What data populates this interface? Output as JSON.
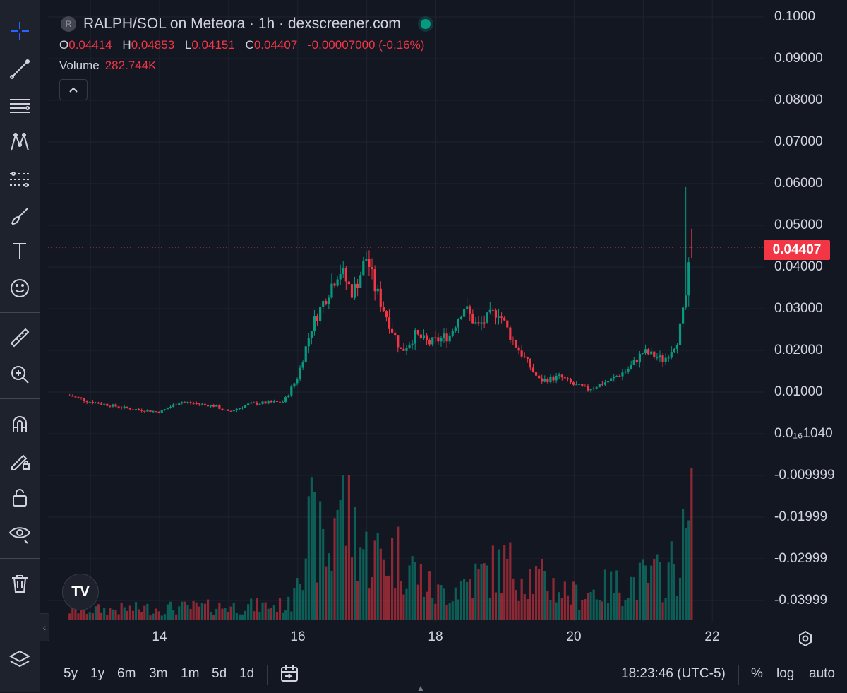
{
  "legend": {
    "symbol_initial": "R",
    "title": "RALPH/SOL on Meteora · 1h · dexscreener.com",
    "ohlc": {
      "o_label": "O",
      "o_value": "0.04414",
      "h_label": "H",
      "h_value": "0.04853",
      "l_label": "L",
      "l_value": "0.04151",
      "c_label": "C",
      "c_value": "0.04407",
      "change": "-0.00007000 (-0.16%)"
    },
    "volume_label": "Volume",
    "volume_value": "282.744K"
  },
  "price_axis": {
    "ticks": [
      "0.1000",
      "0.09000",
      "0.08000",
      "0.07000",
      "0.06000",
      "0.05000",
      "0.04000",
      "0.03000",
      "0.02000",
      "0.01000",
      "0.0₁₆1040",
      "-0.009999",
      "-0.01999",
      "-0.02999",
      "-0.03999"
    ],
    "last_price": "0.04407"
  },
  "time_axis": {
    "labels": [
      "14",
      "16",
      "18",
      "20",
      "22"
    ]
  },
  "bottom_bar": {
    "ranges": [
      "5y",
      "1y",
      "6m",
      "3m",
      "1m",
      "5d",
      "1d"
    ],
    "clock": "18:23:46 (UTC-5)",
    "percent": "%",
    "log": "log",
    "auto": "auto"
  },
  "toolbar_icons": [
    "crosshair-icon",
    "trend-line-icon",
    "fib-retracement-icon",
    "pattern-icon",
    "prediction-icon",
    "brush-icon",
    "text-icon",
    "emoji-icon",
    "ruler-icon",
    "zoom-in-icon",
    "magnet-icon",
    "lock-drawing-icon",
    "lock-icon",
    "eye-icon",
    "trash-icon",
    "layers-icon"
  ],
  "colors": {
    "up": "#089981",
    "down": "#f23645",
    "accent": "#2962ff",
    "background": "#131722"
  },
  "chart_data": {
    "type": "candlestick",
    "series_name": "RALPH/SOL",
    "interval": "1h",
    "x_axis": {
      "type": "date",
      "ticks": [
        "14",
        "16",
        "18",
        "20",
        "22"
      ]
    },
    "y_axis": {
      "ylim": [
        -0.045,
        0.1
      ],
      "scale": "linear"
    },
    "last": {
      "open": 0.04414,
      "high": 0.04853,
      "low": 0.04151,
      "close": 0.04407
    },
    "close_path": [
      [
        12.7,
        0.0085
      ],
      [
        13.0,
        0.007
      ],
      [
        13.5,
        0.0055
      ],
      [
        14.0,
        0.0045
      ],
      [
        14.3,
        0.007
      ],
      [
        14.8,
        0.006
      ],
      [
        15.0,
        0.0045
      ],
      [
        15.3,
        0.0065
      ],
      [
        15.8,
        0.007
      ],
      [
        16.0,
        0.013
      ],
      [
        16.2,
        0.025
      ],
      [
        16.4,
        0.032
      ],
      [
        16.6,
        0.039
      ],
      [
        16.8,
        0.033
      ],
      [
        17.0,
        0.042
      ],
      [
        17.1,
        0.035
      ],
      [
        17.3,
        0.027
      ],
      [
        17.5,
        0.019
      ],
      [
        17.7,
        0.023
      ],
      [
        17.9,
        0.021
      ],
      [
        18.2,
        0.023
      ],
      [
        18.4,
        0.03
      ],
      [
        18.6,
        0.025
      ],
      [
        18.9,
        0.029
      ],
      [
        19.1,
        0.022
      ],
      [
        19.3,
        0.017
      ],
      [
        19.5,
        0.012
      ],
      [
        19.8,
        0.013
      ],
      [
        20.0,
        0.011
      ],
      [
        20.2,
        0.01
      ],
      [
        20.5,
        0.012
      ],
      [
        20.8,
        0.015
      ],
      [
        21.0,
        0.019
      ],
      [
        21.3,
        0.017
      ],
      [
        21.5,
        0.022
      ],
      [
        21.6,
        0.03
      ],
      [
        21.7,
        0.0441
      ]
    ],
    "volume_path": [
      [
        12.7,
        2
      ],
      [
        15.9,
        3
      ],
      [
        16.0,
        14
      ],
      [
        16.2,
        18
      ],
      [
        16.5,
        12
      ],
      [
        16.5,
        27
      ],
      [
        17.0,
        13
      ],
      [
        17.5,
        13
      ],
      [
        18.0,
        5
      ],
      [
        19.0,
        11
      ],
      [
        20.0,
        5
      ],
      [
        21.3,
        9
      ],
      [
        21.5,
        12
      ],
      [
        21.7,
        20
      ]
    ]
  }
}
